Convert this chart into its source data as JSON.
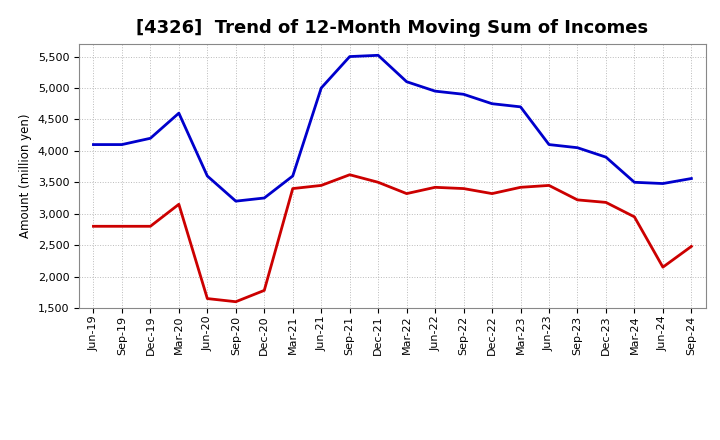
{
  "title": "[4326]  Trend of 12-Month Moving Sum of Incomes",
  "ylabel": "Amount (million yen)",
  "ylim": [
    1500,
    5700
  ],
  "yticks": [
    1500,
    2000,
    2500,
    3000,
    3500,
    4000,
    4500,
    5000,
    5500
  ],
  "labels": [
    "Jun-19",
    "Sep-19",
    "Dec-19",
    "Mar-20",
    "Jun-20",
    "Sep-20",
    "Dec-20",
    "Mar-21",
    "Jun-21",
    "Sep-21",
    "Dec-21",
    "Mar-22",
    "Jun-22",
    "Sep-22",
    "Dec-22",
    "Mar-23",
    "Jun-23",
    "Sep-23",
    "Dec-23",
    "Mar-24",
    "Jun-24",
    "Sep-24"
  ],
  "ordinary_income": [
    4100,
    4100,
    4200,
    4600,
    3600,
    3200,
    3250,
    3600,
    5000,
    5500,
    5520,
    5100,
    4950,
    4900,
    4750,
    4700,
    4100,
    4050,
    3900,
    3500,
    3480,
    3560
  ],
  "net_income": [
    2800,
    2800,
    2800,
    3150,
    1650,
    1600,
    1780,
    3400,
    3450,
    3620,
    3500,
    3320,
    3420,
    3400,
    3320,
    3420,
    3450,
    3220,
    3180,
    2950,
    2150,
    2480
  ],
  "ordinary_color": "#0000cc",
  "net_color": "#cc0000",
  "bg_color": "#ffffff",
  "grid_color": "#aaaaaa",
  "line_width": 2.0,
  "title_fontsize": 13,
  "label_fontsize": 8.5,
  "tick_fontsize": 8,
  "legend_fontsize": 9
}
